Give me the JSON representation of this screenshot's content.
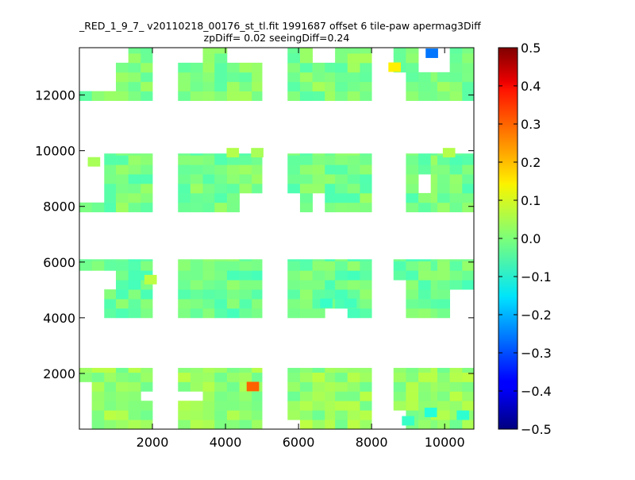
{
  "chart_data": {
    "type": "heatmap",
    "title_lines": [
      "_RED_1_9_7_ v20110218_00176_st_tl.fit 1991687 offset 6 tile-paw apermag3Diff",
      "zpDiff= 0.02 seeingDiff=0.24"
    ],
    "xlim": [
      0,
      10800
    ],
    "ylim": [
      0,
      13700
    ],
    "x_ticks": [
      2000,
      4000,
      6000,
      8000,
      10000
    ],
    "x_tick_labels": [
      "2000",
      "4000",
      "6000",
      "8000",
      "10000"
    ],
    "y_ticks": [
      2000,
      4000,
      6000,
      8000,
      10000,
      12000
    ],
    "y_tick_labels": [
      "2000",
      "4000",
      "6000",
      "8000",
      "10000",
      "12000"
    ],
    "colorscale": "jet",
    "color_range": [
      -0.5,
      0.5
    ],
    "colorbar_ticks": [
      -0.5,
      -0.4,
      -0.3,
      -0.2,
      -0.1,
      0.0,
      0.1,
      0.2,
      0.3,
      0.4,
      0.5
    ],
    "colorbar_tick_labels": [
      "−0.5",
      "−0.4",
      "−0.3",
      "−0.2",
      "−0.1",
      "0.0",
      "0.1",
      "0.2",
      "0.3",
      "0.4",
      "0.5"
    ],
    "cell_size": 340,
    "columns": [
      {
        "x0": 0,
        "x1": 1000
      },
      {
        "x0": 1000,
        "x1": 2000
      },
      {
        "x0": 2700,
        "x1": 3700
      },
      {
        "x0": 3700,
        "x1": 5000
      },
      {
        "x0": 5700,
        "x1": 7000
      },
      {
        "x0": 7000,
        "x1": 8000
      },
      {
        "x0": 8600,
        "x1": 9800
      },
      {
        "x0": 9800,
        "x1": 10800
      }
    ],
    "bands": [
      {
        "y0": 0,
        "y1": 2200
      },
      {
        "y0": 4000,
        "y1": 6100
      },
      {
        "y0": 7800,
        "y1": 9900
      },
      {
        "y0": 11800,
        "y1": 13700
      }
    ],
    "band_base_values": [
      0.02,
      -0.02,
      -0.01,
      0.0
    ],
    "holes": [
      {
        "x0": 0,
        "x1": 340,
        "y0": 0,
        "y1": 1700
      },
      {
        "x0": 2000,
        "x1": 2700,
        "y0": 0,
        "y1": 2200
      },
      {
        "x0": 1700,
        "x1": 2000,
        "y0": 1000,
        "y1": 1400
      },
      {
        "x0": 2700,
        "x1": 3400,
        "y0": 1000,
        "y1": 1400
      },
      {
        "x0": 5700,
        "x1": 6000,
        "y0": 0,
        "y1": 400
      },
      {
        "x0": 8000,
        "x1": 9000,
        "y0": 0,
        "y1": 800
      },
      {
        "x0": 0,
        "x1": 700,
        "y0": 4000,
        "y1": 5700
      },
      {
        "x0": 700,
        "x1": 1000,
        "y0": 5000,
        "y1": 5700
      },
      {
        "x0": 2000,
        "x1": 2700,
        "y0": 4000,
        "y1": 5100
      },
      {
        "x0": 6700,
        "x1": 7300,
        "y0": 4000,
        "y1": 4400
      },
      {
        "x0": 8000,
        "x1": 8600,
        "y0": 4000,
        "y1": 6100
      },
      {
        "x0": 8600,
        "x1": 9000,
        "y0": 4000,
        "y1": 5300
      },
      {
        "x0": 10300,
        "x1": 10800,
        "y0": 4000,
        "y1": 5100
      },
      {
        "x0": 0,
        "x1": 700,
        "y0": 8100,
        "y1": 9900
      },
      {
        "x0": 0,
        "x1": 300,
        "y0": 9300,
        "y1": 9900
      },
      {
        "x0": 2000,
        "x1": 2700,
        "y0": 7800,
        "y1": 9900
      },
      {
        "x0": 4400,
        "x1": 5000,
        "y0": 7800,
        "y1": 8600
      },
      {
        "x0": 5000,
        "x1": 5700,
        "y0": 7800,
        "y1": 9900
      },
      {
        "x0": 5700,
        "x1": 6000,
        "y0": 7800,
        "y1": 8600
      },
      {
        "x0": 6400,
        "x1": 6700,
        "y0": 7800,
        "y1": 8600
      },
      {
        "x0": 8000,
        "x1": 9000,
        "y0": 7800,
        "y1": 9600
      },
      {
        "x0": 8600,
        "x1": 9000,
        "y0": 7800,
        "y1": 9900
      },
      {
        "x0": 9300,
        "x1": 9700,
        "y0": 8600,
        "y1": 9300
      },
      {
        "x0": 0,
        "x1": 1000,
        "y0": 12200,
        "y1": 13700
      },
      {
        "x0": 1000,
        "x1": 1400,
        "y0": 13000,
        "y1": 13700
      },
      {
        "x0": 2000,
        "x1": 2700,
        "y0": 11800,
        "y1": 13700
      },
      {
        "x0": 2700,
        "x1": 3400,
        "y0": 13000,
        "y1": 13700
      },
      {
        "x0": 4000,
        "x1": 5000,
        "y0": 13000,
        "y1": 13700
      },
      {
        "x0": 5000,
        "x1": 5700,
        "y0": 11800,
        "y1": 13700
      },
      {
        "x0": 6400,
        "x1": 7000,
        "y0": 13300,
        "y1": 13700
      },
      {
        "x0": 8000,
        "x1": 8600,
        "y0": 11800,
        "y1": 13700
      },
      {
        "x0": 8600,
        "x1": 8900,
        "y0": 11800,
        "y1": 12900
      },
      {
        "x0": 9300,
        "x1": 10000,
        "y0": 12900,
        "y1": 13700
      },
      {
        "x0": 10000,
        "x1": 10300,
        "y0": 13000,
        "y1": 13700
      }
    ],
    "outlier_cells": [
      {
        "x": 4750,
        "y": 1530,
        "value": 0.28
      },
      {
        "x": 8630,
        "y": 13000,
        "value": 0.14
      },
      {
        "x": 9650,
        "y": 13500,
        "value": -0.26
      },
      {
        "x": 1950,
        "y": 5370,
        "value": 0.06
      },
      {
        "x": 4200,
        "y": 9930,
        "value": 0.05
      },
      {
        "x": 4870,
        "y": 9930,
        "value": 0.04
      },
      {
        "x": 10120,
        "y": 9930,
        "value": 0.05
      },
      {
        "x": 400,
        "y": 9600,
        "value": 0.04
      },
      {
        "x": 9620,
        "y": 600,
        "value": -0.09
      },
      {
        "x": 10500,
        "y": 500,
        "value": -0.08
      },
      {
        "x": 9000,
        "y": 300,
        "value": -0.07
      },
      {
        "x": 7420,
        "y": 4520,
        "value": -0.06
      },
      {
        "x": 6760,
        "y": 4520,
        "value": -0.07
      }
    ]
  }
}
